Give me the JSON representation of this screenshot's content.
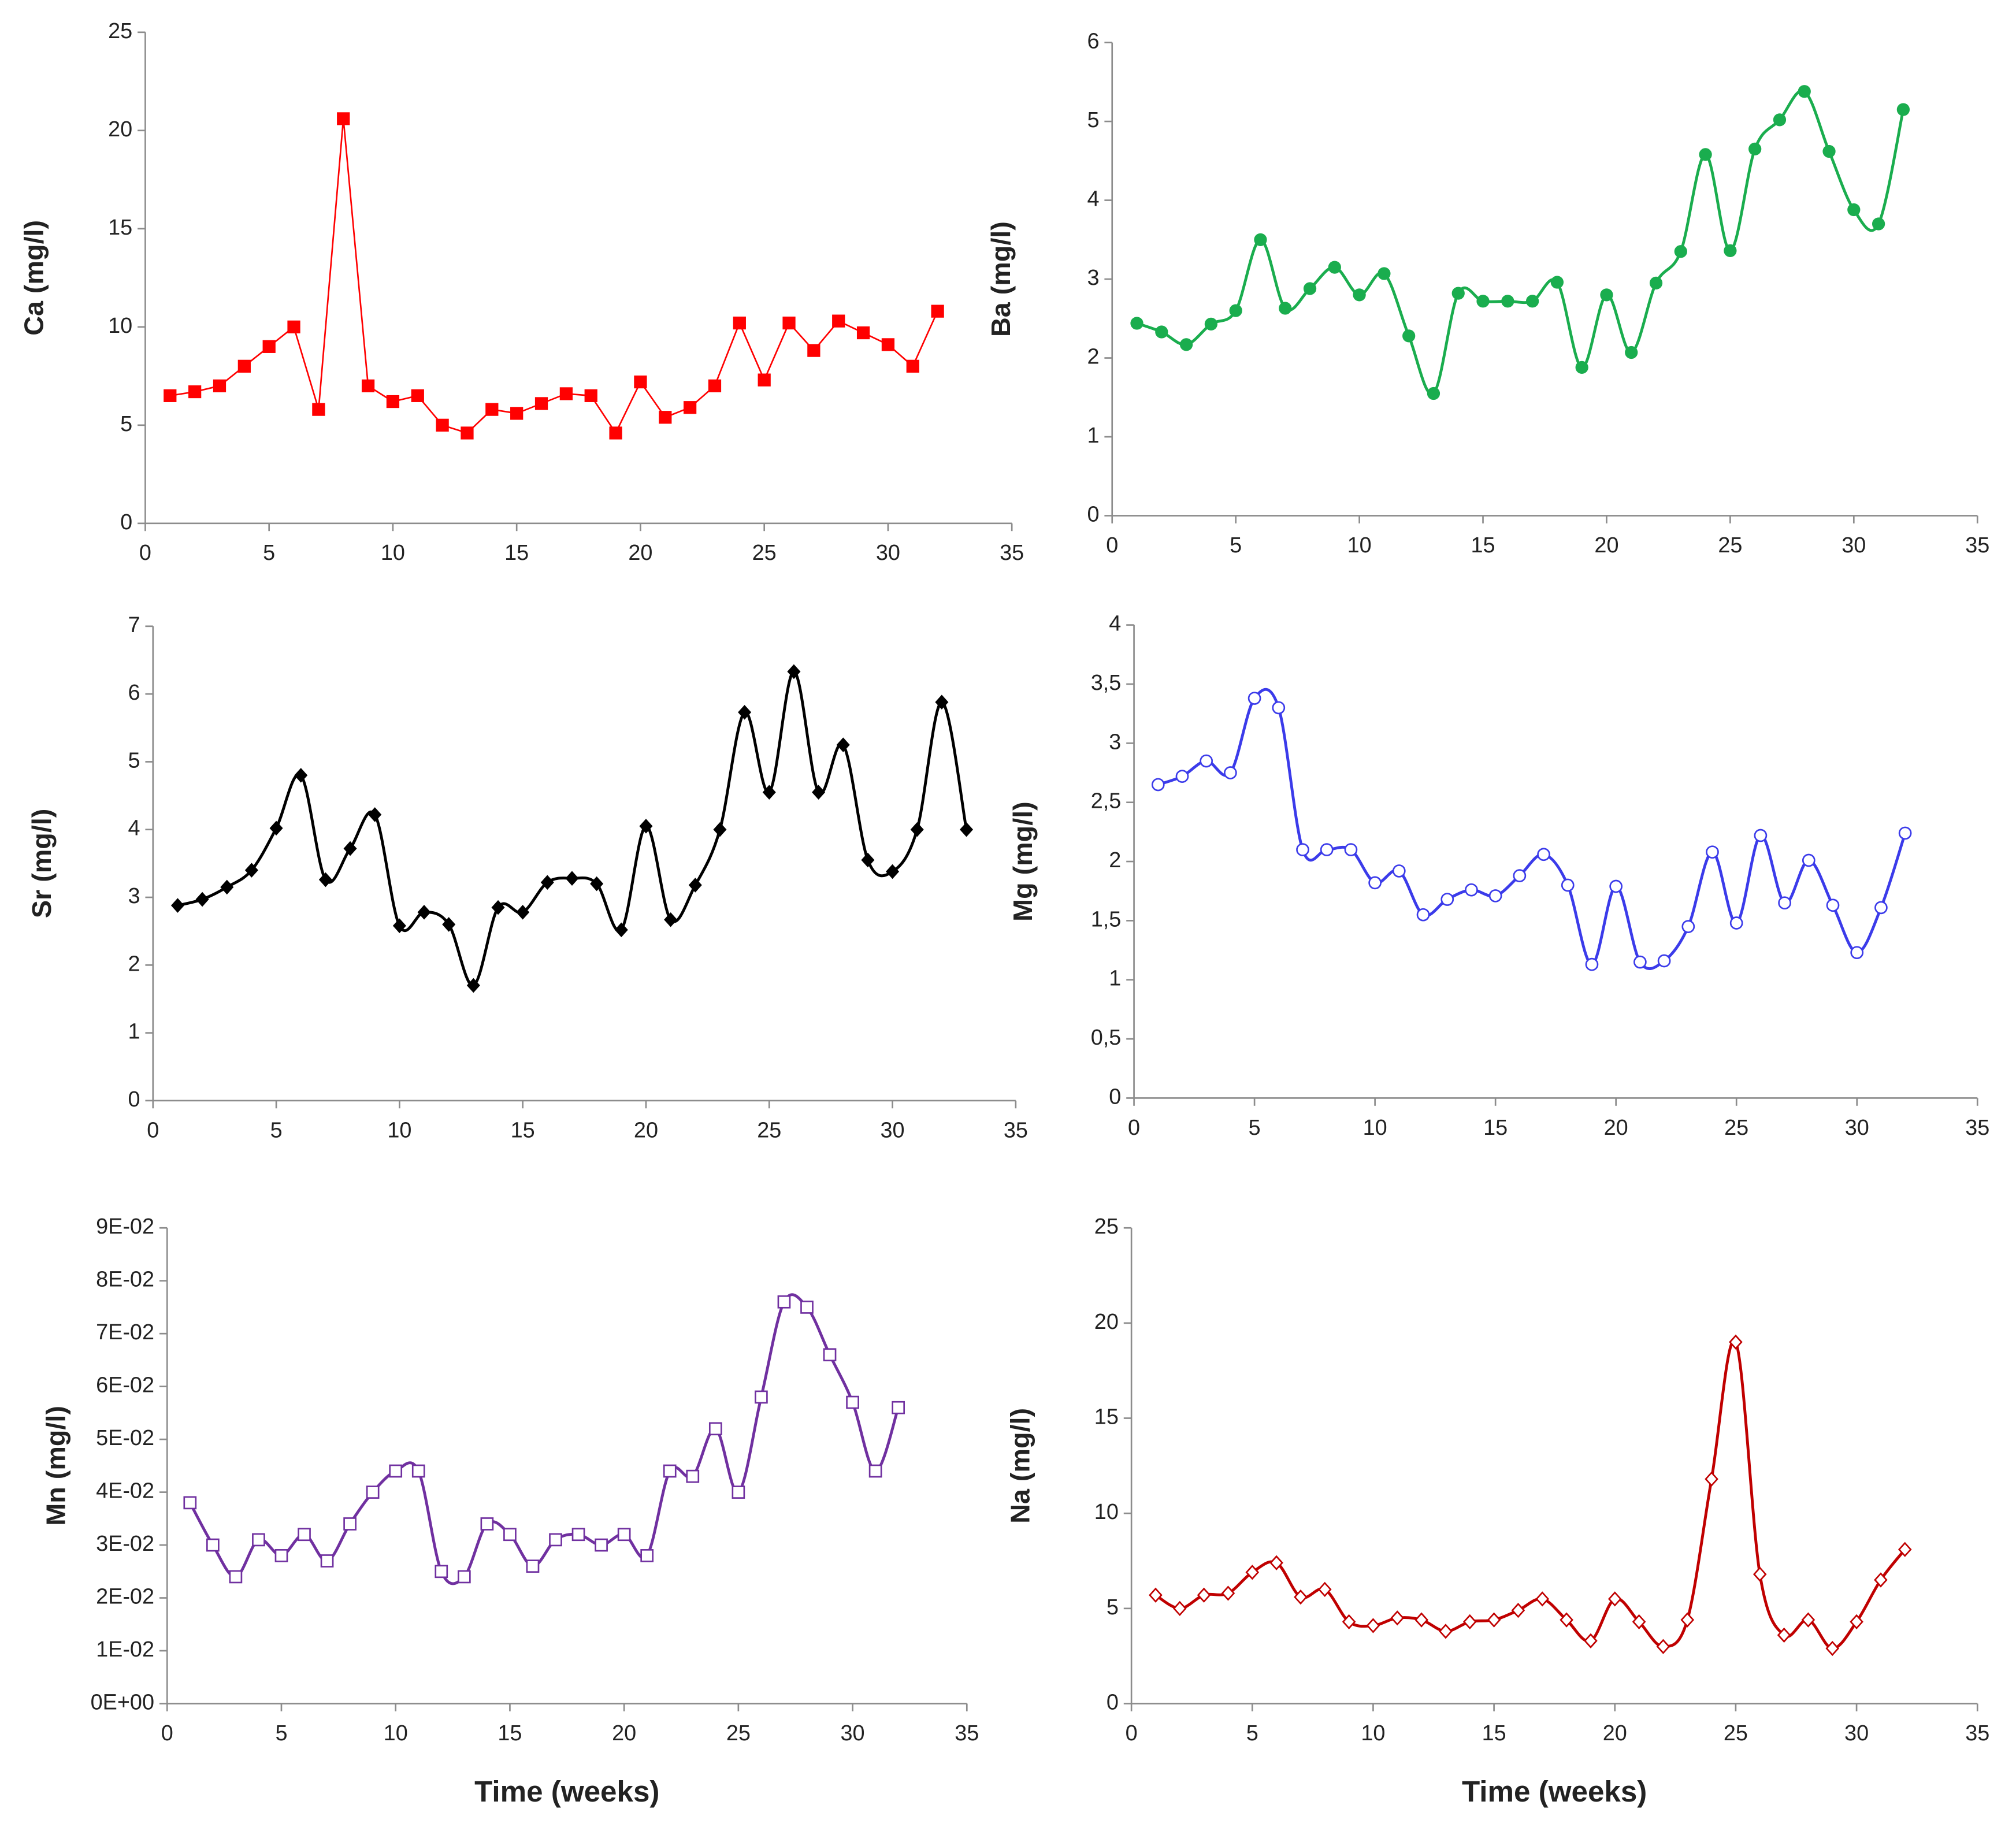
{
  "chart_data": [
    {
      "type": "line",
      "smooth": false,
      "marker": "square",
      "filled": true,
      "color": "#ff0000",
      "y_label": "Ca (mg/l)",
      "x": [
        1,
        2,
        3,
        4,
        5,
        6,
        7,
        8,
        9,
        10,
        11,
        12,
        13,
        14,
        15,
        16,
        17,
        18,
        19,
        20,
        21,
        22,
        23,
        24,
        25,
        26,
        27,
        28,
        29,
        30,
        31,
        32
      ],
      "values": [
        6.5,
        6.7,
        7.0,
        8.0,
        9.0,
        10.0,
        5.8,
        20.6,
        7.0,
        6.2,
        6.5,
        5.0,
        4.6,
        5.8,
        5.6,
        6.1,
        6.6,
        6.5,
        4.6,
        7.2,
        5.4,
        5.9,
        7.0,
        10.2,
        7.3,
        10.2,
        8.8,
        10.3,
        9.7,
        9.1,
        8.0,
        10.8
      ],
      "xlim": [
        0,
        35
      ],
      "xticks": [
        0,
        5,
        10,
        15,
        20,
        25,
        30,
        35
      ],
      "ylim": [
        0,
        25
      ],
      "yticks": [
        0,
        5,
        10,
        15,
        20,
        25
      ]
    },
    {
      "type": "line",
      "smooth": true,
      "marker": "circle",
      "filled": true,
      "color": "#1aad4e",
      "y_label": "Ba (mg/l)",
      "x": [
        1,
        2,
        3,
        4,
        5,
        6,
        7,
        8,
        9,
        10,
        11,
        12,
        13,
        14,
        15,
        16,
        17,
        18,
        19,
        20,
        21,
        22,
        23,
        24,
        25,
        26,
        27,
        28,
        29,
        30,
        31,
        32
      ],
      "values": [
        2.44,
        2.33,
        2.17,
        2.43,
        2.6,
        3.5,
        2.63,
        2.88,
        3.15,
        2.8,
        3.07,
        2.28,
        1.55,
        2.82,
        2.72,
        2.72,
        2.72,
        2.96,
        1.88,
        2.8,
        2.07,
        2.95,
        3.35,
        4.58,
        3.36,
        4.65,
        5.02,
        5.38,
        4.62,
        3.88,
        3.7,
        5.15
      ],
      "xlim": [
        0,
        35
      ],
      "xticks": [
        0,
        5,
        10,
        15,
        20,
        25,
        30,
        35
      ],
      "ylim": [
        0,
        6
      ],
      "yticks": [
        0,
        1,
        2,
        3,
        4,
        5,
        6
      ]
    },
    {
      "type": "line",
      "smooth": true,
      "marker": "diamond",
      "filled": true,
      "color": "#000000",
      "y_label": "Sr (mg/l)",
      "x": [
        1,
        2,
        3,
        4,
        5,
        6,
        7,
        8,
        9,
        10,
        11,
        12,
        13,
        14,
        15,
        16,
        17,
        18,
        19,
        20,
        21,
        22,
        23,
        24,
        25,
        26,
        27,
        28,
        29,
        30,
        31,
        32,
        33
      ],
      "values": [
        2.88,
        2.97,
        3.15,
        3.4,
        4.02,
        4.8,
        3.26,
        3.72,
        4.22,
        2.58,
        2.78,
        2.6,
        1.7,
        2.85,
        2.78,
        3.22,
        3.28,
        3.2,
        2.52,
        4.05,
        2.67,
        3.18,
        4.0,
        5.73,
        4.55,
        6.33,
        4.55,
        5.25,
        3.55,
        3.38,
        4.0,
        5.88,
        4.0
      ],
      "xlim": [
        0,
        35
      ],
      "xticks": [
        0,
        5,
        10,
        15,
        20,
        25,
        30,
        35
      ],
      "ylim": [
        0,
        7
      ],
      "yticks": [
        0,
        1,
        2,
        3,
        4,
        5,
        6,
        7
      ]
    },
    {
      "type": "line",
      "smooth": true,
      "marker": "circle",
      "filled": false,
      "color": "#3b3bea",
      "y_label": "Mg (mg/l)",
      "x": [
        1,
        2,
        3,
        4,
        5,
        6,
        7,
        8,
        9,
        10,
        11,
        12,
        13,
        14,
        15,
        16,
        17,
        18,
        19,
        20,
        21,
        22,
        23,
        24,
        25,
        26,
        27,
        28,
        29,
        30,
        31,
        32
      ],
      "values": [
        2.65,
        2.72,
        2.85,
        2.75,
        3.38,
        3.3,
        2.1,
        2.1,
        2.1,
        1.82,
        1.92,
        1.55,
        1.68,
        1.76,
        1.71,
        1.88,
        2.06,
        1.8,
        1.13,
        1.79,
        1.15,
        1.16,
        1.45,
        2.08,
        1.48,
        2.22,
        1.65,
        2.01,
        1.63,
        1.23,
        1.61,
        2.24
      ],
      "xlim": [
        0,
        35
      ],
      "xticks": [
        0,
        5,
        10,
        15,
        20,
        25,
        30,
        35
      ],
      "ylim": [
        0,
        4
      ],
      "yticks": [
        0,
        {
          "value": 0.5,
          "label": "0,5"
        },
        1,
        {
          "value": 1.5,
          "label": "1,5"
        },
        2,
        {
          "value": 2.5,
          "label": "2,5"
        },
        3,
        {
          "value": 3.5,
          "label": "3,5"
        },
        4
      ]
    },
    {
      "type": "line",
      "smooth": true,
      "marker": "square",
      "filled": false,
      "color": "#7030a0",
      "y_label": "Mn (mg/l)",
      "x_label": "Time (weeks)",
      "x": [
        1,
        2,
        3,
        4,
        5,
        6,
        7,
        8,
        9,
        10,
        11,
        12,
        13,
        14,
        15,
        16,
        17,
        18,
        19,
        20,
        21,
        22,
        23,
        24,
        25,
        26,
        27,
        28,
        29,
        30,
        31,
        32
      ],
      "values": [
        0.038,
        0.03,
        0.024,
        0.031,
        0.028,
        0.032,
        0.027,
        0.034,
        0.04,
        0.044,
        0.044,
        0.025,
        0.024,
        0.034,
        0.032,
        0.026,
        0.031,
        0.032,
        0.03,
        0.032,
        0.028,
        0.044,
        0.043,
        0.052,
        0.04,
        0.058,
        0.076,
        0.075,
        0.066,
        0.057,
        0.044,
        0.056
      ],
      "xlim": [
        0,
        35
      ],
      "xticks": [
        0,
        5,
        10,
        15,
        20,
        25,
        30,
        35
      ],
      "ylim": [
        0,
        0.09
      ],
      "yticks": [
        {
          "value": 0,
          "label": "0E+00"
        },
        {
          "value": 0.01,
          "label": "1E-02"
        },
        {
          "value": 0.02,
          "label": "2E-02"
        },
        {
          "value": 0.03,
          "label": "3E-02"
        },
        {
          "value": 0.04,
          "label": "4E-02"
        },
        {
          "value": 0.05,
          "label": "5E-02"
        },
        {
          "value": 0.06,
          "label": "6E-02"
        },
        {
          "value": 0.07,
          "label": "7E-02"
        },
        {
          "value": 0.08,
          "label": "8E-02"
        },
        {
          "value": 0.09,
          "label": "9E-02"
        }
      ]
    },
    {
      "type": "line",
      "smooth": true,
      "marker": "diamond",
      "filled": false,
      "color": "#c00000",
      "y_label": "Na (mg/l)",
      "x_label": "Time (weeks)",
      "x": [
        1,
        2,
        3,
        4,
        5,
        6,
        7,
        8,
        9,
        10,
        11,
        12,
        13,
        14,
        15,
        16,
        17,
        18,
        19,
        20,
        21,
        22,
        23,
        24,
        25,
        26,
        27,
        28,
        29,
        30,
        31,
        32
      ],
      "values": [
        5.7,
        5.0,
        5.7,
        5.8,
        6.9,
        7.4,
        5.6,
        6.0,
        4.3,
        4.1,
        4.5,
        4.4,
        3.8,
        4.3,
        4.4,
        4.9,
        5.5,
        4.4,
        3.3,
        5.5,
        4.3,
        3.0,
        4.4,
        11.8,
        19.0,
        6.8,
        3.6,
        4.4,
        2.9,
        4.3,
        6.5,
        8.1
      ],
      "xlim": [
        0,
        35
      ],
      "xticks": [
        0,
        5,
        10,
        15,
        20,
        25,
        30,
        35
      ],
      "ylim": [
        0,
        25
      ],
      "yticks": [
        0,
        5,
        10,
        15,
        20,
        25
      ]
    }
  ]
}
